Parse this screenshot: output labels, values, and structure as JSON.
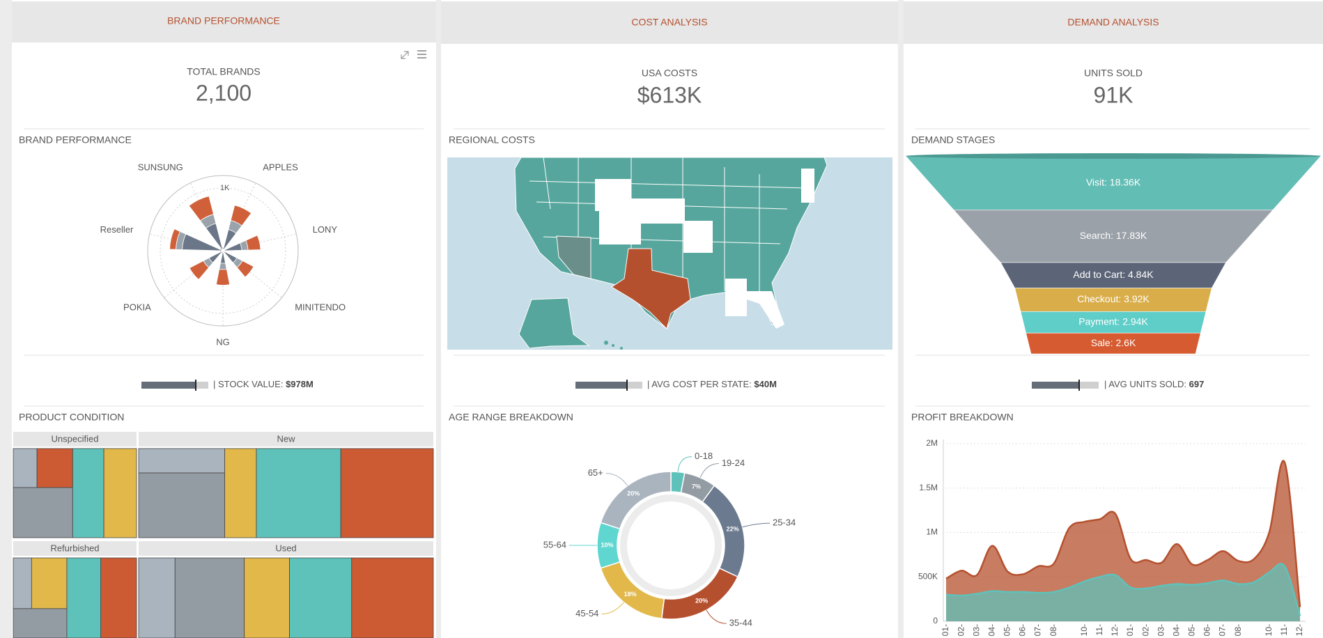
{
  "panels": [
    {
      "header": "BRAND PERFORMANCE",
      "kpi_label": "TOTAL BRANDS",
      "kpi_value": "2,100",
      "chart_title": "BRAND PERFORMANCE",
      "bullet_label": "| STOCK VALUE:",
      "bullet_value": "$978M",
      "bottom_title": "PRODUCT CONDITION"
    },
    {
      "header": "COST ANALYSIS",
      "kpi_label": "USA COSTS",
      "kpi_value": "$613K",
      "chart_title": "REGIONAL COSTS",
      "bullet_label": "| AVG COST PER STATE:",
      "bullet_value": "$40M",
      "bottom_title": "AGE RANGE BREAKDOWN"
    },
    {
      "header": "DEMAND ANALYSIS",
      "kpi_label": "UNITS SOLD",
      "kpi_value": "91K",
      "chart_title": "DEMAND STAGES",
      "bullet_label": "| AVG UNITS SOLD:",
      "bullet_value": "697",
      "bottom_title": "PROFIT BREAKDOWN"
    }
  ],
  "chart_data": [
    {
      "type": "polar",
      "categories": [
        "APPLES",
        "LONY",
        "MINITENDO",
        "NG",
        "POKIA",
        "Reseller",
        "SUNSUNG"
      ],
      "series": [
        {
          "color": "#6b7688",
          "values": [
            350,
            300,
            250,
            200,
            250,
            650,
            450
          ]
        },
        {
          "color": "#9aa3ab",
          "values": [
            150,
            100,
            100,
            100,
            100,
            100,
            150
          ]
        },
        {
          "color": "#d0603a",
          "values": [
            250,
            200,
            200,
            250,
            250,
            100,
            300
          ]
        }
      ],
      "ylim": [
        0,
        1200
      ],
      "yticks": [
        0,
        {
          "value": 1000,
          "label": "1K"
        }
      ]
    },
    {
      "type": "funnel",
      "values": [
        18360,
        17830,
        4840,
        3920,
        2940,
        2600
      ],
      "value_labels": [
        "Visit: 18.36K",
        "Search: 17.83K",
        "Add to Cart: 4.84K",
        "Checkout: 3.92K",
        "Payment: 2.94K",
        "Sale: 2.6K"
      ],
      "colors": [
        "#62bdb5",
        "#9aa1a8",
        "#5c6577",
        "#d9ae4a",
        "#5fcdc8",
        "#d65b31"
      ]
    },
    {
      "type": "treemap",
      "groups": [
        {
          "name": "Unspecified",
          "children": [
            {
              "color": "#aab4bf",
              "value": 14
            },
            {
              "color": "#cc5a33",
              "value": 21
            },
            {
              "color": "#939ba3",
              "value": 45
            },
            {
              "color": "#5fc2ba",
              "value": 42
            },
            {
              "color": "#e2b84b",
              "value": 44
            }
          ]
        },
        {
          "name": "New",
          "children": [
            {
              "color": "#aab4bf",
              "value": 29
            },
            {
              "color": "#939ba3",
              "value": 77
            },
            {
              "color": "#e2b84b",
              "value": 39
            },
            {
              "color": "#5fc2ba",
              "value": 104
            },
            {
              "color": "#cc5a33",
              "value": 114
            }
          ]
        },
        {
          "name": "Refurbished",
          "children": [
            {
              "color": "#aab4bf",
              "value": 13
            },
            {
              "color": "#e2b84b",
              "value": 25
            },
            {
              "color": "#939ba3",
              "value": 22
            },
            {
              "color": "#5fc2ba",
              "value": 38
            },
            {
              "color": "#cc5a33",
              "value": 40
            }
          ]
        },
        {
          "name": "Used",
          "children": [
            {
              "color": "#aab4bf",
              "value": 41
            },
            {
              "color": "#939ba3",
              "value": 78
            },
            {
              "color": "#e2b84b",
              "value": 51
            },
            {
              "color": "#5fc2ba",
              "value": 70
            },
            {
              "color": "#cc5a33",
              "value": 92
            }
          ]
        }
      ]
    },
    {
      "type": "donut",
      "categories": [
        "0-18",
        "19-24",
        "25-34",
        "35-44",
        "45-54",
        "55-64",
        "65+"
      ],
      "values": [
        3,
        7,
        22,
        20,
        18,
        10,
        20
      ],
      "value_labels": [
        null,
        "7%",
        "22%",
        "20%",
        "18%",
        "10%",
        "20%"
      ],
      "colors": [
        "#5fc2ba",
        "#939ba3",
        "#6b7a8f",
        "#b5502e",
        "#e2b84b",
        "#5fd6d0",
        "#aab4bf"
      ]
    },
    {
      "type": "area",
      "categories": [
        "01-",
        "02-",
        "03-",
        "04-",
        "05-",
        "06-",
        "07-",
        "08-",
        null,
        "10-",
        "11-",
        "12-",
        "01-",
        "02-",
        "03-",
        "04-",
        "05-",
        "06-",
        "07-",
        "08-",
        null,
        "10-",
        "11-",
        "12-"
      ],
      "series": [
        {
          "color": "#b5502e",
          "values": [
            480000,
            570000,
            520000,
            850000,
            560000,
            530000,
            620000,
            650000,
            1050000,
            1120000,
            1150000,
            1210000,
            700000,
            690000,
            660000,
            870000,
            640000,
            690000,
            790000,
            680000,
            700000,
            1000000,
            1790000,
            160000
          ]
        },
        {
          "color": "#5fc2ba",
          "values": [
            300000,
            290000,
            310000,
            340000,
            330000,
            330000,
            320000,
            330000,
            380000,
            450000,
            500000,
            520000,
            380000,
            370000,
            400000,
            420000,
            410000,
            430000,
            460000,
            420000,
            440000,
            550000,
            620000,
            60000
          ]
        }
      ],
      "ylim": [
        0,
        2000000
      ],
      "yticks": [
        0,
        {
          "value": 500000,
          "label": "500K"
        },
        {
          "value": 1000000,
          "label": "1M"
        },
        {
          "value": 1500000,
          "label": "1.5M"
        },
        {
          "value": 2000000,
          "label": "2M"
        }
      ],
      "grid": true
    }
  ]
}
